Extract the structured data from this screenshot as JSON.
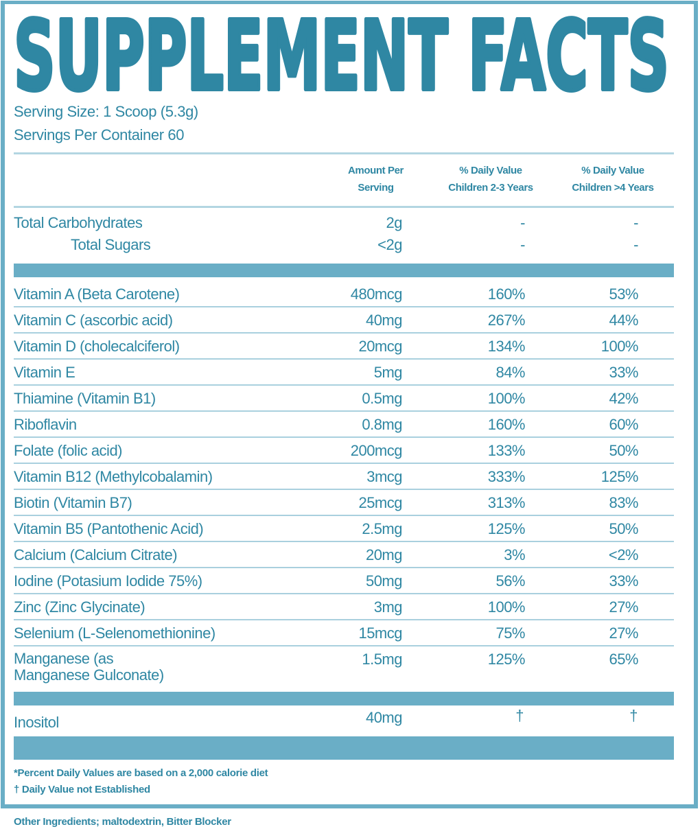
{
  "title": "SUPPLEMENT FACTS",
  "serving_size": "Serving Size: 1 Scoop (5.3g)",
  "servings_per_container": "Servings Per Container 60",
  "headers": {
    "amount": [
      "Amount Per",
      "Serving"
    ],
    "dv_2_3": [
      "% Daily Value",
      "Children 2-3 Years"
    ],
    "dv_4": [
      "% Daily Value",
      "Children >4 Years"
    ]
  },
  "carbs": [
    {
      "name": "Total Carbohydrates",
      "amount": "2g",
      "dv1": "-",
      "dv2": "-"
    },
    {
      "name": "Total Sugars",
      "amount": "<2g",
      "dv1": "-",
      "dv2": "-"
    }
  ],
  "nutrients": [
    {
      "name": "Vitamin A (Beta Carotene)",
      "amount": "480mcg",
      "dv1": "160%",
      "dv2": "53%"
    },
    {
      "name": "Vitamin C (ascorbic acid)",
      "amount": "40mg",
      "dv1": "267%",
      "dv2": "44%"
    },
    {
      "name": "Vitamin D (cholecalciferol)",
      "amount": "20mcg",
      "dv1": "134%",
      "dv2": "100%"
    },
    {
      "name": "Vitamin E",
      "amount": "5mg",
      "dv1": "84%",
      "dv2": "33%"
    },
    {
      "name": "Thiamine (Vitamin B1)",
      "amount": "0.5mg",
      "dv1": "100%",
      "dv2": "42%"
    },
    {
      "name": "Riboflavin",
      "amount": "0.8mg",
      "dv1": "160%",
      "dv2": "60%"
    },
    {
      "name": "Folate (folic acid)",
      "amount": "200mcg",
      "dv1": "133%",
      "dv2": "50%"
    },
    {
      "name": "Vitamin B12 (Methylcobalamin)",
      "amount": "3mcg",
      "dv1": "333%",
      "dv2": "125%"
    },
    {
      "name": "Biotin (Vitamin B7)",
      "amount": "25mcg",
      "dv1": "313%",
      "dv2": "83%"
    },
    {
      "name": "Vitamin B5 (Pantothenic Acid)",
      "amount": "2.5mg",
      "dv1": "125%",
      "dv2": "50%"
    },
    {
      "name": "Calcium (Calcium Citrate)",
      "amount": "20mg",
      "dv1": "3%",
      "dv2": "<2%"
    },
    {
      "name": "Iodine (Potasium Iodide 75%)",
      "amount": "50mg",
      "dv1": "56%",
      "dv2": "33%"
    },
    {
      "name": "Zinc (Zinc Glycinate)",
      "amount": "3mg",
      "dv1": "100%",
      "dv2": "27%"
    },
    {
      "name": "Selenium (L-Selenomethionine)",
      "amount": "15mcg",
      "dv1": "75%",
      "dv2": "27%"
    }
  ],
  "manganese": {
    "name_line1": "Manganese (as",
    "name_line2": "Manganese Gulconate)",
    "amount": "1.5mg",
    "dv1": "125%",
    "dv2": "65%"
  },
  "inositol": {
    "name": "Inositol",
    "amount": "40mg",
    "dv1": "†",
    "dv2": "†"
  },
  "footnotes": [
    "*Percent Daily Values are based on a 2,000 calorie diet",
    "† Daily Value not Established"
  ],
  "other_ingredients": "Other Ingredients; maltodextrin, Bitter Blocker",
  "colors": {
    "text": "#2f87a3",
    "bar": "#6aaec6",
    "rule": "#b3d6e2"
  }
}
